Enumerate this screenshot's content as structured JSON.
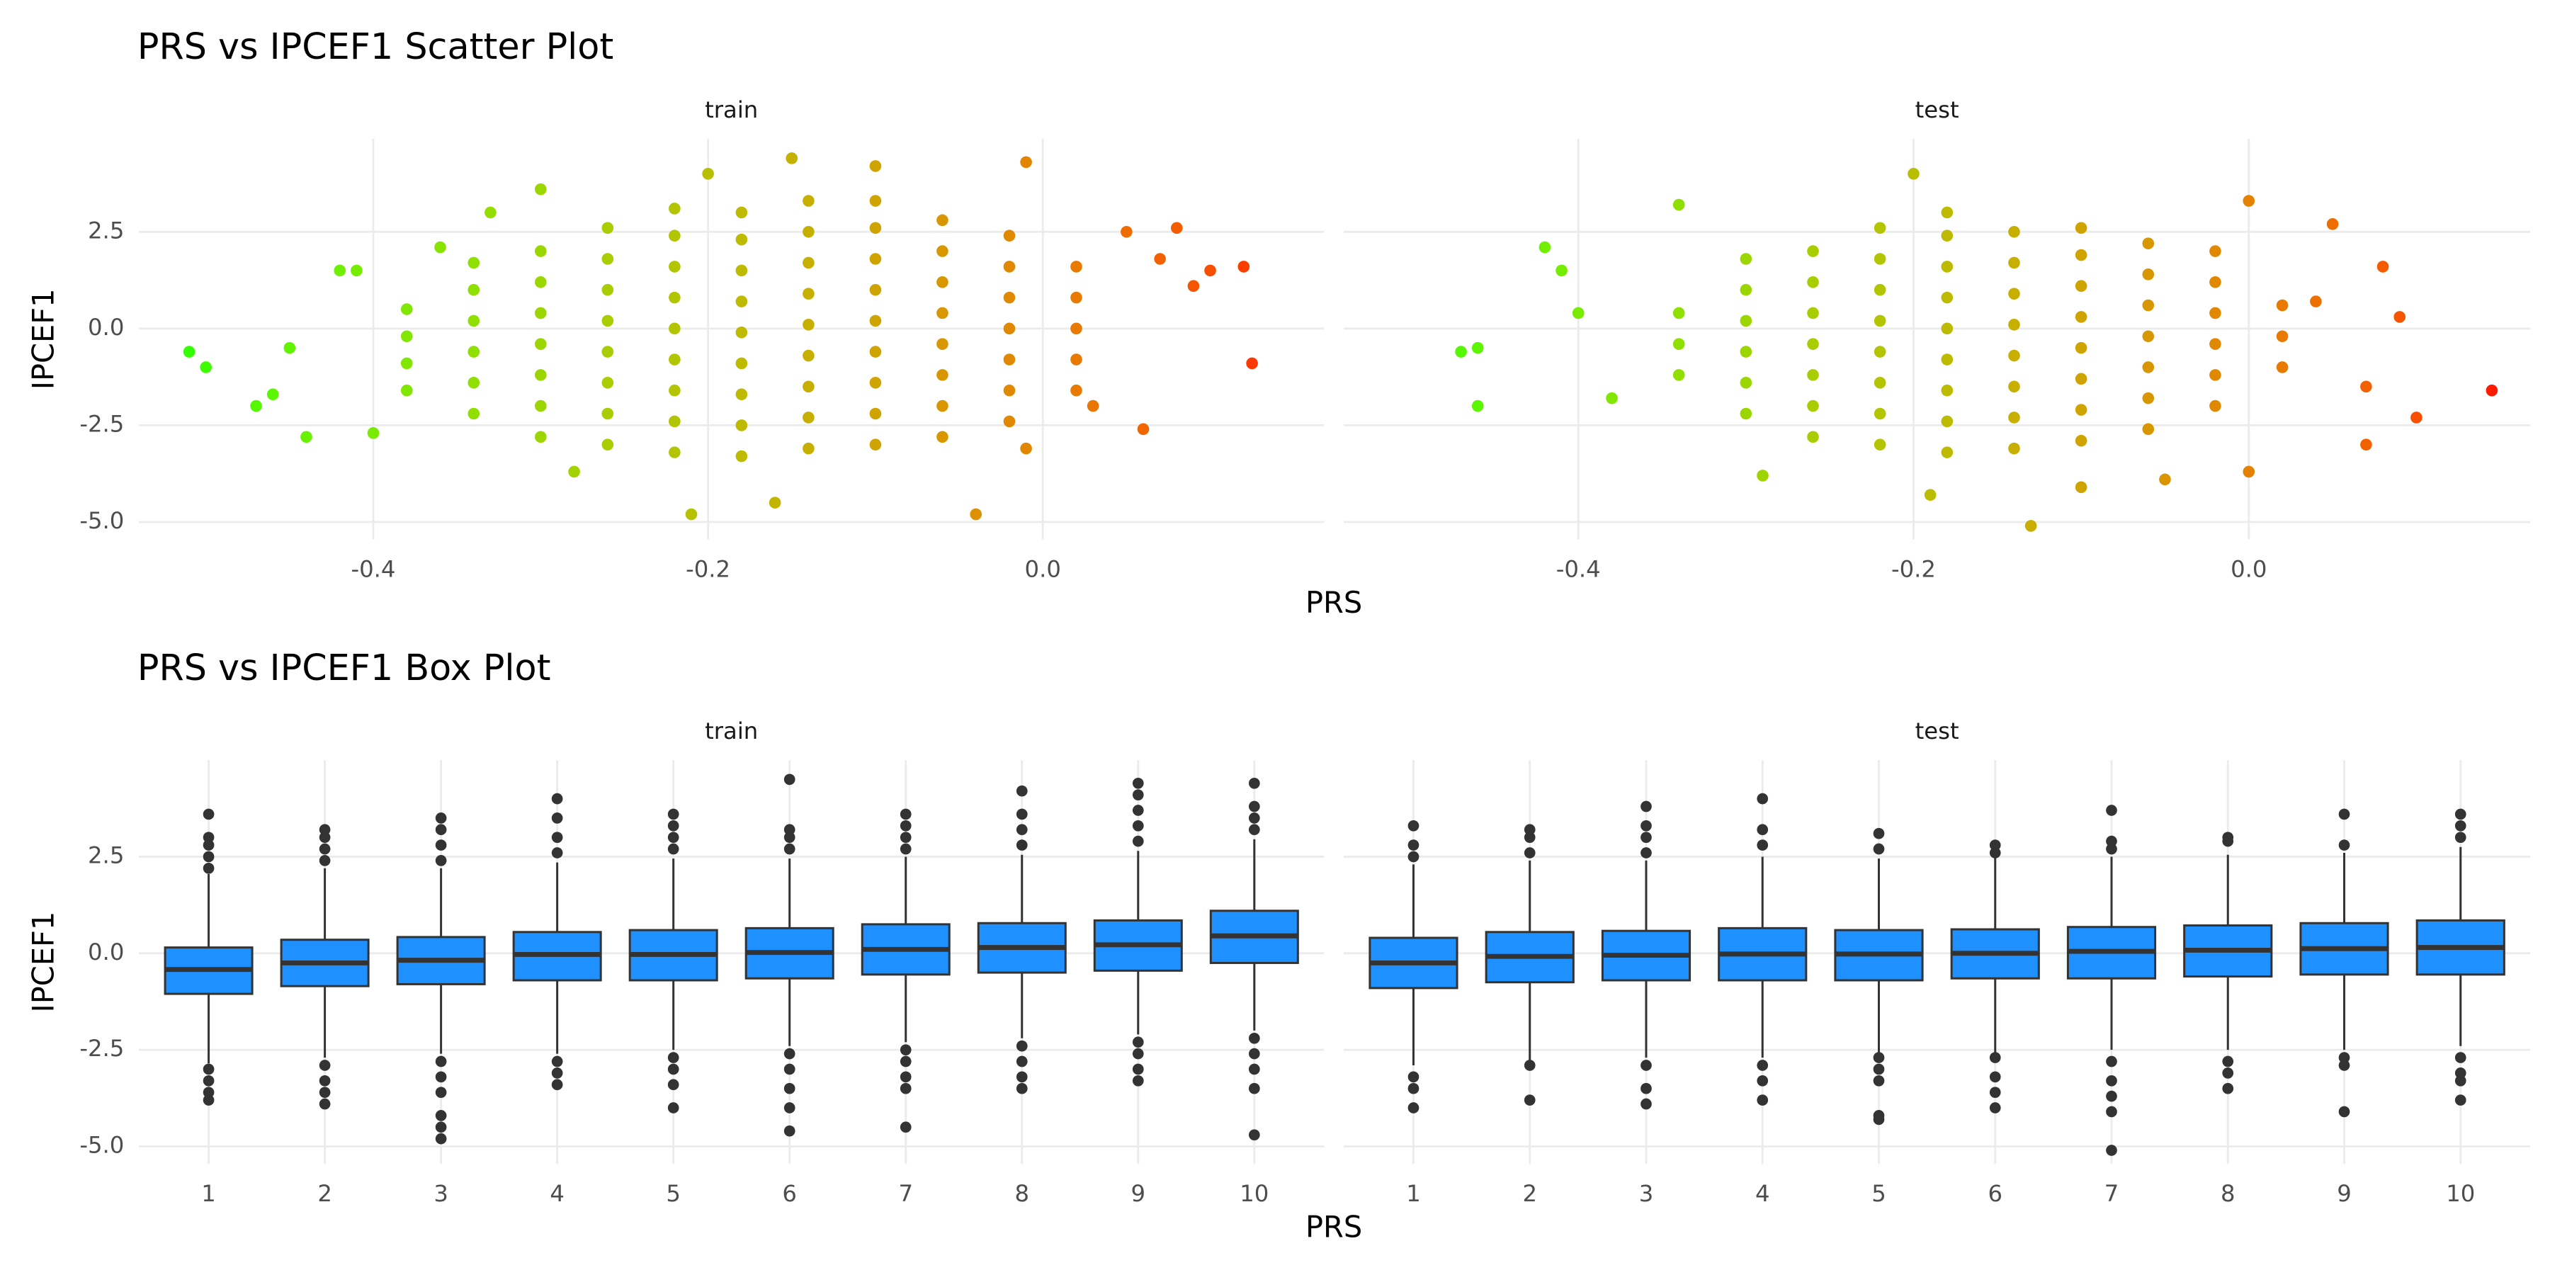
{
  "chart_data": [
    {
      "type": "scatter",
      "title": "PRS vs IPCEF1 Scatter Plot",
      "x_label": "PRS",
      "y_label": "IPCEF1",
      "xlim": [
        -0.54,
        0.168
      ],
      "ylim": [
        -5.45,
        4.9
      ],
      "xticks": [
        -0.4,
        -0.2,
        {
          "value": 0,
          "label": "0.0"
        }
      ],
      "yticks": [
        {
          "value": -5,
          "label": "-5.0"
        },
        -2.5,
        {
          "value": 0,
          "label": "0.0"
        },
        2.5
      ],
      "grid": true,
      "color_low": "#33ff00",
      "color_high": "#ff1a00",
      "panels": [
        {
          "name": "train",
          "x": [
            -0.51,
            -0.5,
            -0.47,
            -0.46,
            -0.45,
            -0.44,
            -0.42,
            -0.41,
            -0.4,
            -0.36,
            -0.33,
            -0.3,
            -0.28,
            -0.21,
            -0.2,
            -0.16,
            -0.15,
            -0.1,
            -0.04,
            -0.01,
            -0.01,
            0.05,
            0.08,
            0.1,
            0.12,
            0.125,
            0.06,
            0.03,
            0.09,
            0.07,
            -0.38,
            -0.38,
            -0.38,
            -0.38,
            -0.34,
            -0.34,
            -0.34,
            -0.34,
            -0.34,
            -0.34,
            -0.3,
            -0.3,
            -0.3,
            -0.3,
            -0.3,
            -0.3,
            -0.3,
            -0.26,
            -0.26,
            -0.26,
            -0.26,
            -0.26,
            -0.26,
            -0.26,
            -0.26,
            -0.22,
            -0.22,
            -0.22,
            -0.22,
            -0.22,
            -0.22,
            -0.22,
            -0.22,
            -0.22,
            -0.18,
            -0.18,
            -0.18,
            -0.18,
            -0.18,
            -0.18,
            -0.18,
            -0.18,
            -0.18,
            -0.14,
            -0.14,
            -0.14,
            -0.14,
            -0.14,
            -0.14,
            -0.14,
            -0.14,
            -0.14,
            -0.1,
            -0.1,
            -0.1,
            -0.1,
            -0.1,
            -0.1,
            -0.1,
            -0.1,
            -0.1,
            -0.06,
            -0.06,
            -0.06,
            -0.06,
            -0.06,
            -0.06,
            -0.06,
            -0.06,
            -0.02,
            -0.02,
            -0.02,
            -0.02,
            -0.02,
            -0.02,
            -0.02,
            0.02,
            0.02,
            0.02,
            0.02,
            0.02
          ],
          "values": [
            -0.6,
            -1.0,
            -2.0,
            -1.7,
            -0.5,
            -2.8,
            1.5,
            1.5,
            -2.7,
            2.1,
            3.0,
            3.6,
            -3.7,
            -4.8,
            4.0,
            -4.5,
            4.4,
            4.2,
            -4.8,
            4.3,
            -3.1,
            2.5,
            2.6,
            1.5,
            1.6,
            -0.9,
            -2.6,
            -2.0,
            1.1,
            1.8,
            -1.6,
            -0.9,
            -0.2,
            0.5,
            -2.2,
            -1.4,
            -0.6,
            0.2,
            1.0,
            1.7,
            -2.8,
            -2.0,
            -1.2,
            -0.4,
            0.4,
            1.2,
            2.0,
            -3.0,
            -2.2,
            -1.4,
            -0.6,
            0.2,
            1.0,
            1.8,
            2.6,
            -3.2,
            -2.4,
            -1.6,
            -0.8,
            0,
            0.8,
            1.6,
            2.4,
            3.1,
            -3.3,
            -2.5,
            -1.7,
            -0.9,
            -0.1,
            0.7,
            1.5,
            2.3,
            3.0,
            -3.1,
            -2.3,
            -1.5,
            -0.7,
            0.1,
            0.9,
            1.7,
            2.5,
            3.3,
            -3.0,
            -2.2,
            -1.4,
            -0.6,
            0.2,
            1.0,
            1.8,
            2.6,
            3.3,
            -2.8,
            -2.0,
            -1.2,
            -0.4,
            0.4,
            1.2,
            2.0,
            2.8,
            -2.4,
            -1.6,
            -0.8,
            0,
            0.8,
            1.6,
            2.4,
            -1.6,
            -0.8,
            0,
            0.8,
            1.6
          ]
        },
        {
          "name": "test",
          "x": [
            -0.47,
            -0.46,
            -0.46,
            -0.42,
            -0.41,
            -0.4,
            -0.38,
            -0.34,
            -0.29,
            -0.2,
            -0.19,
            -0.13,
            -0.1,
            -0.05,
            0.0,
            0.0,
            0.05,
            0.07,
            0.07,
            0.09,
            0.1,
            0.08,
            0.04,
            0.145,
            -0.34,
            -0.34,
            -0.34,
            -0.3,
            -0.3,
            -0.3,
            -0.3,
            -0.3,
            -0.3,
            -0.26,
            -0.26,
            -0.26,
            -0.26,
            -0.26,
            -0.26,
            -0.26,
            -0.22,
            -0.22,
            -0.22,
            -0.22,
            -0.22,
            -0.22,
            -0.22,
            -0.22,
            -0.18,
            -0.18,
            -0.18,
            -0.18,
            -0.18,
            -0.18,
            -0.18,
            -0.18,
            -0.18,
            -0.14,
            -0.14,
            -0.14,
            -0.14,
            -0.14,
            -0.14,
            -0.14,
            -0.14,
            -0.1,
            -0.1,
            -0.1,
            -0.1,
            -0.1,
            -0.1,
            -0.1,
            -0.1,
            -0.06,
            -0.06,
            -0.06,
            -0.06,
            -0.06,
            -0.06,
            -0.06,
            -0.02,
            -0.02,
            -0.02,
            -0.02,
            -0.02,
            -0.02,
            0.02,
            0.02,
            0.02
          ],
          "values": [
            -0.6,
            -2.0,
            -0.5,
            2.1,
            1.5,
            0.4,
            -1.8,
            3.2,
            -3.8,
            4.0,
            -4.3,
            -5.1,
            -4.1,
            -3.9,
            -3.7,
            3.3,
            2.7,
            -1.5,
            -3.0,
            0.3,
            -2.3,
            1.6,
            0.7,
            -1.6,
            -1.2,
            -0.4,
            0.4,
            -2.2,
            -1.4,
            -0.6,
            0.2,
            1.0,
            1.8,
            -2.8,
            -2.0,
            -1.2,
            -0.4,
            0.4,
            1.2,
            2.0,
            -3.0,
            -2.2,
            -1.4,
            -0.6,
            0.2,
            1.0,
            1.8,
            2.6,
            -3.2,
            -2.4,
            -1.6,
            -0.8,
            0,
            0.8,
            1.6,
            2.4,
            3.0,
            -3.1,
            -2.3,
            -1.5,
            -0.7,
            0.1,
            0.9,
            1.7,
            2.5,
            -2.9,
            -2.1,
            -1.3,
            -0.5,
            0.3,
            1.1,
            1.9,
            2.6,
            -2.6,
            -1.8,
            -1.0,
            -0.2,
            0.6,
            1.4,
            2.2,
            -2.0,
            -1.2,
            -0.4,
            0.4,
            1.2,
            2.0,
            -1.0,
            -0.2,
            0.6
          ]
        }
      ]
    },
    {
      "type": "box",
      "title": "PRS vs IPCEF1 Box Plot",
      "x_label": "PRS",
      "y_label": "IPCEF1",
      "categories": [
        1,
        2,
        3,
        4,
        5,
        6,
        7,
        8,
        9,
        10
      ],
      "ylim": [
        -5.45,
        5.0
      ],
      "yticks": [
        {
          "value": -5,
          "label": "-5.0"
        },
        -2.5,
        {
          "value": 0,
          "label": "0.0"
        },
        2.5
      ],
      "grid": true,
      "color": "#1e90ff",
      "line_color": "#333333",
      "panels": [
        {
          "name": "train",
          "min": [
            -2.85,
            -2.7,
            -2.6,
            -2.6,
            -2.5,
            -2.4,
            -2.3,
            -2.2,
            -2.1,
            -2.0
          ],
          "q1": [
            -1.05,
            -0.85,
            -0.8,
            -0.7,
            -0.7,
            -0.65,
            -0.55,
            -0.5,
            -0.45,
            -0.25
          ],
          "median": [
            -0.42,
            -0.25,
            -0.18,
            -0.03,
            -0.03,
            0.02,
            0.1,
            0.15,
            0.22,
            0.45
          ],
          "q3": [
            0.15,
            0.35,
            0.42,
            0.55,
            0.6,
            0.65,
            0.75,
            0.78,
            0.85,
            1.1
          ],
          "max": [
            2.05,
            2.2,
            2.2,
            2.35,
            2.45,
            2.45,
            2.5,
            2.55,
            2.65,
            2.95
          ],
          "outliers": [
            [
              2.2,
              2.5,
              2.8,
              3.0,
              3.6,
              -3.0,
              -3.3,
              -3.6,
              -3.8
            ],
            [
              2.4,
              2.7,
              3.0,
              3.2,
              -2.9,
              -3.3,
              -3.6,
              -3.9
            ],
            [
              2.4,
              2.8,
              3.2,
              3.5,
              -2.8,
              -3.2,
              -3.6,
              -4.2,
              -4.5,
              -4.8
            ],
            [
              2.6,
              3.0,
              3.5,
              4.0,
              -2.8,
              -3.1,
              -3.4
            ],
            [
              2.7,
              3.0,
              3.3,
              3.6,
              -2.7,
              -3.0,
              -3.4,
              -4.0
            ],
            [
              2.7,
              3.0,
              3.2,
              4.5,
              -2.6,
              -3.0,
              -3.5,
              -4.0,
              -4.6
            ],
            [
              2.7,
              3.0,
              3.3,
              3.6,
              -2.5,
              -2.8,
              -3.2,
              -3.5,
              -4.5
            ],
            [
              2.8,
              3.2,
              3.6,
              4.2,
              -2.4,
              -2.8,
              -3.2,
              -3.5
            ],
            [
              2.9,
              3.3,
              3.7,
              4.1,
              4.4,
              -2.3,
              -2.6,
              -3.0,
              -3.3
            ],
            [
              3.2,
              3.5,
              3.8,
              4.4,
              -2.2,
              -2.6,
              -3.0,
              -3.5,
              -4.7
            ]
          ]
        },
        {
          "name": "test",
          "min": [
            -2.9,
            -2.8,
            -2.7,
            -2.7,
            -2.6,
            -2.6,
            -2.5,
            -2.5,
            -2.5,
            -2.4
          ],
          "q1": [
            -0.9,
            -0.75,
            -0.7,
            -0.7,
            -0.7,
            -0.65,
            -0.65,
            -0.6,
            -0.55,
            -0.55
          ],
          "median": [
            -0.25,
            -0.08,
            -0.05,
            -0.02,
            -0.02,
            0.0,
            0.05,
            0.08,
            0.12,
            0.15
          ],
          "q3": [
            0.4,
            0.55,
            0.58,
            0.65,
            0.6,
            0.62,
            0.68,
            0.72,
            0.78,
            0.85
          ],
          "max": [
            2.3,
            2.4,
            2.4,
            2.5,
            2.45,
            2.5,
            2.5,
            2.55,
            2.6,
            2.75
          ],
          "outliers": [
            [
              2.5,
              2.8,
              3.3,
              -3.2,
              -3.5,
              -4.0
            ],
            [
              2.6,
              3.0,
              3.2,
              -2.9,
              -3.8
            ],
            [
              2.6,
              3.0,
              3.3,
              3.8,
              -2.9,
              -3.5,
              -3.9
            ],
            [
              2.8,
              3.2,
              4.0,
              -2.9,
              -3.3,
              -3.8
            ],
            [
              2.7,
              3.1,
              -2.7,
              -3.0,
              -3.3,
              -4.2,
              -4.3
            ],
            [
              2.6,
              2.8,
              -2.7,
              -3.2,
              -3.6,
              -4.0
            ],
            [
              2.7,
              2.9,
              3.7,
              -2.8,
              -3.3,
              -3.7,
              -4.1,
              -5.1
            ],
            [
              2.9,
              3.0,
              -2.8,
              -3.1,
              -3.5
            ],
            [
              2.8,
              3.6,
              -2.7,
              -2.9,
              -4.1
            ],
            [
              3.0,
              3.3,
              3.6,
              -2.7,
              -3.1,
              -3.3,
              -3.8
            ]
          ]
        }
      ]
    }
  ]
}
